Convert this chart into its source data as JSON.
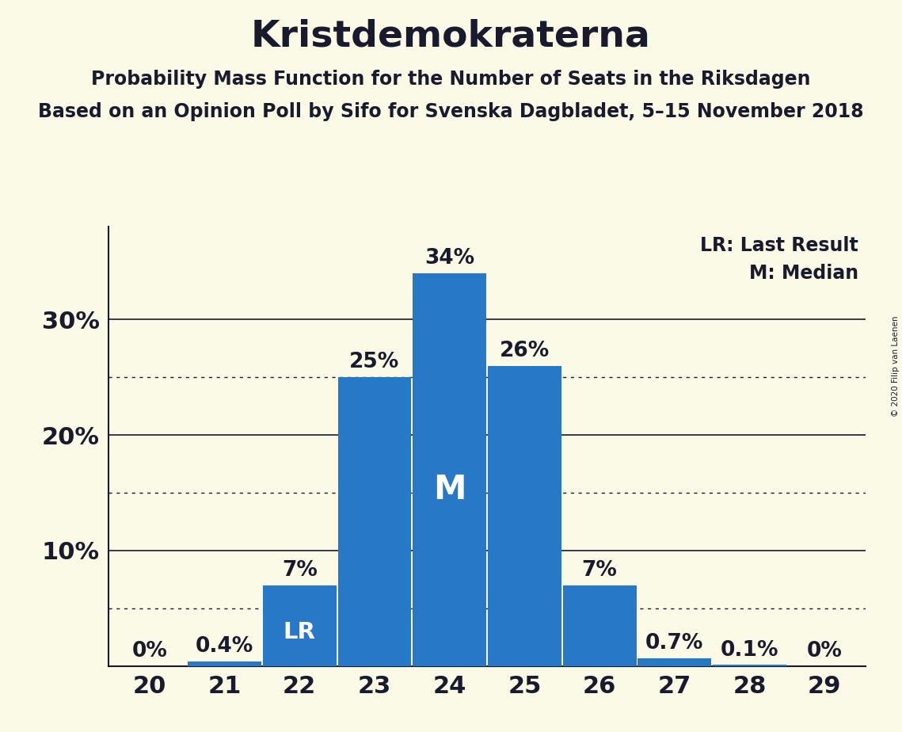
{
  "title": "Kristdemokraterna",
  "subtitle1": "Probability Mass Function for the Number of Seats in the Riksdagen",
  "subtitle2": "Based on an Opinion Poll by Sifo for Svenska Dagbladet, 5–15 November 2018",
  "copyright": "© 2020 Filip van Laenen",
  "seats": [
    20,
    21,
    22,
    23,
    24,
    25,
    26,
    27,
    28,
    29
  ],
  "probabilities": [
    0.0,
    0.4,
    7.0,
    25.0,
    34.0,
    26.0,
    7.0,
    0.7,
    0.1,
    0.0
  ],
  "bar_color": "#2878c8",
  "background_color": "#fafae6",
  "text_color": "#1a1a2e",
  "bar_labels": [
    "0%",
    "0.4%",
    "7%",
    "25%",
    "34%",
    "26%",
    "7%",
    "0.7%",
    "0.1%",
    "0%"
  ],
  "label_LR_idx": 2,
  "label_M_idx": 4,
  "yticks": [
    10,
    20,
    30
  ],
  "ytick_labels": [
    "10%",
    "20%",
    "30%"
  ],
  "dotted_lines": [
    5,
    15,
    25
  ],
  "solid_lines": [
    10,
    20,
    30
  ],
  "legend_text1": "LR: Last Result",
  "legend_text2": "M: Median",
  "ylim": [
    0,
    38
  ],
  "title_fontsize": 34,
  "subtitle_fontsize": 17,
  "axlabel_fontsize": 22,
  "bar_label_fontsize": 19,
  "inner_label_fontsize_LR": 21,
  "inner_label_fontsize_M": 30
}
